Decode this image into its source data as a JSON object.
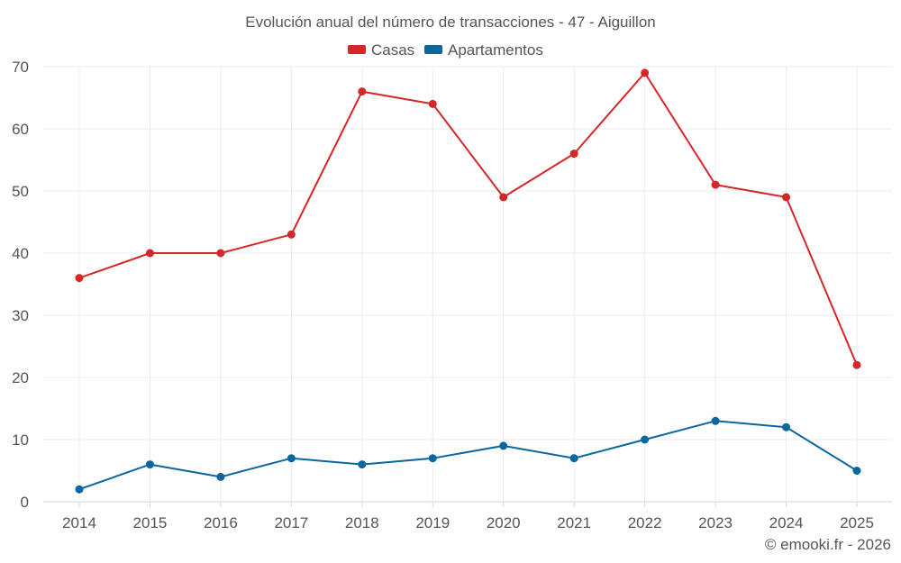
{
  "chart_data": {
    "type": "line",
    "title": "Evolución anual del número de transacciones - 47 - Aiguillon",
    "xlabel": "",
    "ylabel": "",
    "categories": [
      "2014",
      "2015",
      "2016",
      "2017",
      "2018",
      "2019",
      "2020",
      "2021",
      "2022",
      "2023",
      "2024",
      "2025"
    ],
    "yticks": [
      "0",
      "10",
      "20",
      "30",
      "40",
      "50",
      "60",
      "70"
    ],
    "ylim": [
      0,
      70
    ],
    "grid": true,
    "legend_position": "top-center",
    "series": [
      {
        "name": "Casas",
        "color": "#d62728",
        "values": [
          36,
          40,
          40,
          43,
          66,
          64,
          49,
          56,
          69,
          51,
          49,
          22
        ]
      },
      {
        "name": "Apartamentos",
        "color": "#0b67a0",
        "values": [
          2,
          6,
          4,
          7,
          6,
          7,
          9,
          7,
          10,
          13,
          12,
          5
        ]
      }
    ]
  },
  "credit": "© emooki.fr - 2026"
}
